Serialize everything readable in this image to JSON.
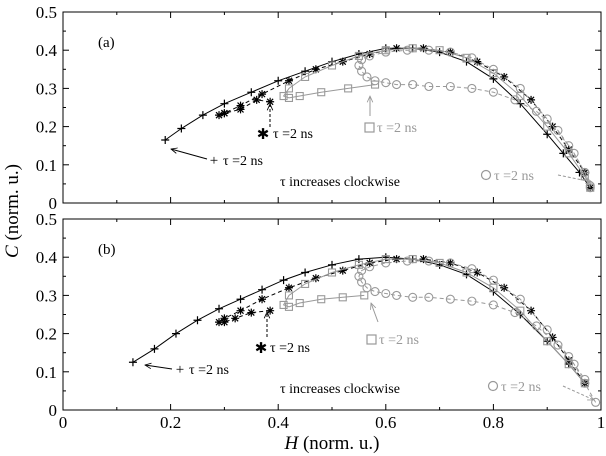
{
  "chart_data": [
    {
      "type": "line",
      "panel_label": "(a)",
      "xlabel": "H (norm. u.)",
      "ylabel": "C (norm. u.)",
      "xlim": [
        0,
        1
      ],
      "ylim": [
        0,
        0.5
      ],
      "xticks": [
        "0",
        "0.2",
        "0.4",
        "0.6",
        "0.8",
        "1"
      ],
      "yticks": [
        "0",
        "0.1",
        "0.2",
        "0.3",
        "0.4",
        "0.5"
      ],
      "grid": false,
      "colors": {
        "plus": "#000000",
        "star": "#000000",
        "square": "#999999",
        "circle": "#999999"
      },
      "annotation": "τ increases clockwise",
      "series": [
        {
          "marker": "plus",
          "line": "solid",
          "label": "τ =2 ns",
          "x": [
            0.19,
            0.22,
            0.26,
            0.3,
            0.35,
            0.4,
            0.45,
            0.5,
            0.55,
            0.6,
            0.65,
            0.7,
            0.75,
            0.8,
            0.85,
            0.9,
            0.93,
            0.96,
            0.98
          ],
          "y": [
            0.165,
            0.195,
            0.23,
            0.26,
            0.29,
            0.32,
            0.345,
            0.37,
            0.39,
            0.405,
            0.405,
            0.395,
            0.37,
            0.325,
            0.26,
            0.18,
            0.13,
            0.08,
            0.04
          ]
        },
        {
          "marker": "star",
          "line": "dashed",
          "label": "τ =2 ns",
          "x": [
            0.385,
            0.36,
            0.33,
            0.3,
            0.29,
            0.3,
            0.33,
            0.37,
            0.42,
            0.47,
            0.52,
            0.57,
            0.62,
            0.67,
            0.72,
            0.77,
            0.82,
            0.87,
            0.91,
            0.94,
            0.97,
            0.98
          ],
          "y": [
            0.265,
            0.27,
            0.245,
            0.235,
            0.23,
            0.235,
            0.255,
            0.285,
            0.32,
            0.35,
            0.37,
            0.39,
            0.405,
            0.405,
            0.395,
            0.37,
            0.33,
            0.27,
            0.2,
            0.14,
            0.08,
            0.04
          ]
        },
        {
          "marker": "square",
          "line": "solid",
          "label": "τ =2 ns",
          "x": [
            0.58,
            0.53,
            0.48,
            0.44,
            0.42,
            0.41,
            0.42,
            0.45,
            0.5,
            0.55,
            0.6,
            0.65,
            0.7,
            0.75,
            0.8,
            0.85,
            0.9,
            0.94,
            0.97,
            0.98
          ],
          "y": [
            0.31,
            0.3,
            0.29,
            0.28,
            0.275,
            0.28,
            0.3,
            0.33,
            0.36,
            0.385,
            0.4,
            0.405,
            0.4,
            0.38,
            0.34,
            0.28,
            0.2,
            0.13,
            0.07,
            0.04
          ]
        },
        {
          "marker": "circle",
          "line": "dashed",
          "label": "τ =2 ns",
          "x": [
            0.98,
            0.97,
            0.95,
            0.92,
            0.88,
            0.84,
            0.8,
            0.76,
            0.72,
            0.68,
            0.65,
            0.62,
            0.6,
            0.58,
            0.565,
            0.555,
            0.55,
            0.555,
            0.57,
            0.6,
            0.64,
            0.68,
            0.72,
            0.76,
            0.8,
            0.85,
            0.9,
            0.94,
            0.97,
            0.98
          ],
          "y": [
            0.04,
            0.08,
            0.13,
            0.19,
            0.24,
            0.27,
            0.29,
            0.3,
            0.305,
            0.305,
            0.31,
            0.31,
            0.315,
            0.32,
            0.33,
            0.345,
            0.36,
            0.375,
            0.385,
            0.395,
            0.4,
            0.4,
            0.395,
            0.38,
            0.35,
            0.3,
            0.22,
            0.15,
            0.08,
            0.045
          ]
        }
      ],
      "labels": {
        "plus": "τ =2 ns",
        "star": "τ =2 ns",
        "square": "τ =2 ns",
        "circle": "τ =2 ns"
      }
    },
    {
      "type": "line",
      "panel_label": "(b)",
      "xlabel": "H (norm. u.)",
      "ylabel": "C (norm. u.)",
      "xlim": [
        0,
        1
      ],
      "ylim": [
        0,
        0.5
      ],
      "xticks": [
        "0",
        "0.2",
        "0.4",
        "0.6",
        "0.8",
        "1"
      ],
      "yticks": [
        "0",
        "0.1",
        "0.2",
        "0.3",
        "0.4",
        "0.5"
      ],
      "grid": false,
      "colors": {
        "plus": "#000000",
        "star": "#000000",
        "square": "#999999",
        "circle": "#999999"
      },
      "annotation": "τ increases clockwise",
      "series": [
        {
          "marker": "plus",
          "line": "solid",
          "label": "τ =2 ns",
          "x": [
            0.13,
            0.17,
            0.21,
            0.25,
            0.29,
            0.33,
            0.37,
            0.41,
            0.45,
            0.5,
            0.55,
            0.6,
            0.65,
            0.7,
            0.75,
            0.8,
            0.85,
            0.9,
            0.94,
            0.97
          ],
          "y": [
            0.125,
            0.16,
            0.2,
            0.235,
            0.265,
            0.29,
            0.315,
            0.34,
            0.36,
            0.38,
            0.395,
            0.4,
            0.395,
            0.38,
            0.355,
            0.31,
            0.25,
            0.18,
            0.12,
            0.07
          ]
        },
        {
          "marker": "star",
          "line": "dashed",
          "label": "τ =2 ns",
          "x": [
            0.385,
            0.35,
            0.32,
            0.3,
            0.29,
            0.3,
            0.33,
            0.37,
            0.42,
            0.47,
            0.52,
            0.57,
            0.62,
            0.67,
            0.72,
            0.77,
            0.82,
            0.87,
            0.91,
            0.94,
            0.97
          ],
          "y": [
            0.26,
            0.255,
            0.24,
            0.23,
            0.23,
            0.24,
            0.26,
            0.29,
            0.32,
            0.345,
            0.365,
            0.385,
            0.395,
            0.395,
            0.385,
            0.36,
            0.32,
            0.26,
            0.19,
            0.13,
            0.07
          ]
        },
        {
          "marker": "square",
          "line": "solid",
          "label": "τ =2 ns",
          "x": [
            0.56,
            0.52,
            0.48,
            0.44,
            0.42,
            0.41,
            0.42,
            0.45,
            0.5,
            0.55,
            0.6,
            0.65,
            0.7,
            0.75,
            0.8,
            0.85,
            0.9,
            0.94,
            0.97
          ],
          "y": [
            0.3,
            0.295,
            0.29,
            0.28,
            0.27,
            0.275,
            0.3,
            0.33,
            0.36,
            0.38,
            0.395,
            0.395,
            0.385,
            0.36,
            0.32,
            0.26,
            0.18,
            0.12,
            0.07
          ]
        },
        {
          "marker": "circle",
          "line": "dashed",
          "label": "τ =2 ns",
          "x": [
            0.99,
            0.97,
            0.95,
            0.92,
            0.88,
            0.84,
            0.8,
            0.76,
            0.72,
            0.68,
            0.65,
            0.62,
            0.6,
            0.58,
            0.565,
            0.555,
            0.55,
            0.555,
            0.57,
            0.6,
            0.64,
            0.68,
            0.72,
            0.76,
            0.8,
            0.85,
            0.9,
            0.94,
            0.97
          ],
          "y": [
            0.02,
            0.07,
            0.12,
            0.17,
            0.22,
            0.255,
            0.275,
            0.285,
            0.29,
            0.295,
            0.295,
            0.3,
            0.305,
            0.31,
            0.32,
            0.335,
            0.35,
            0.365,
            0.375,
            0.385,
            0.39,
            0.39,
            0.385,
            0.37,
            0.34,
            0.29,
            0.21,
            0.14,
            0.08
          ]
        }
      ],
      "labels": {
        "plus": "τ =2 ns",
        "star": "τ =2 ns",
        "square": "τ =2 ns",
        "circle": "τ =2 ns"
      }
    }
  ]
}
